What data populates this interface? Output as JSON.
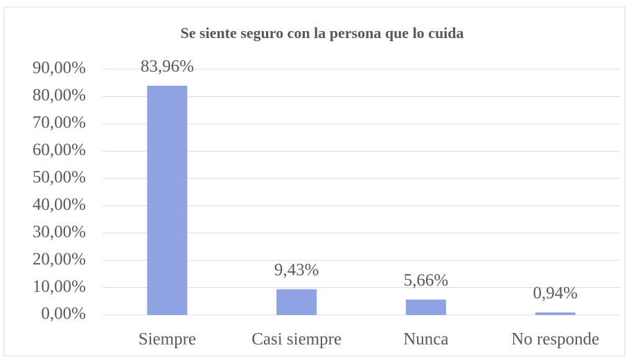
{
  "chart_data": {
    "type": "bar",
    "title": "Se siente seguro con la persona que lo cuida",
    "categories": [
      "Siempre",
      "Casi siempre",
      "Nunca",
      "No responde"
    ],
    "values": [
      83.96,
      9.43,
      5.66,
      0.94
    ],
    "value_labels": [
      "83,96%",
      "9,43%",
      "5,66%",
      "0,94%"
    ],
    "color": "#8fa3e3",
    "ylim": [
      0,
      90
    ],
    "yticks": [
      {
        "value": 0,
        "label": "0,00%"
      },
      {
        "value": 10,
        "label": "10,00%"
      },
      {
        "value": 20,
        "label": "20,00%"
      },
      {
        "value": 30,
        "label": "30,00%"
      },
      {
        "value": 40,
        "label": "40,00%"
      },
      {
        "value": 50,
        "label": "50,00%"
      },
      {
        "value": 60,
        "label": "60,00%"
      },
      {
        "value": 70,
        "label": "70,00%"
      },
      {
        "value": 80,
        "label": "80,00%"
      },
      {
        "value": 90,
        "label": "90,00%"
      }
    ],
    "grid": true
  }
}
